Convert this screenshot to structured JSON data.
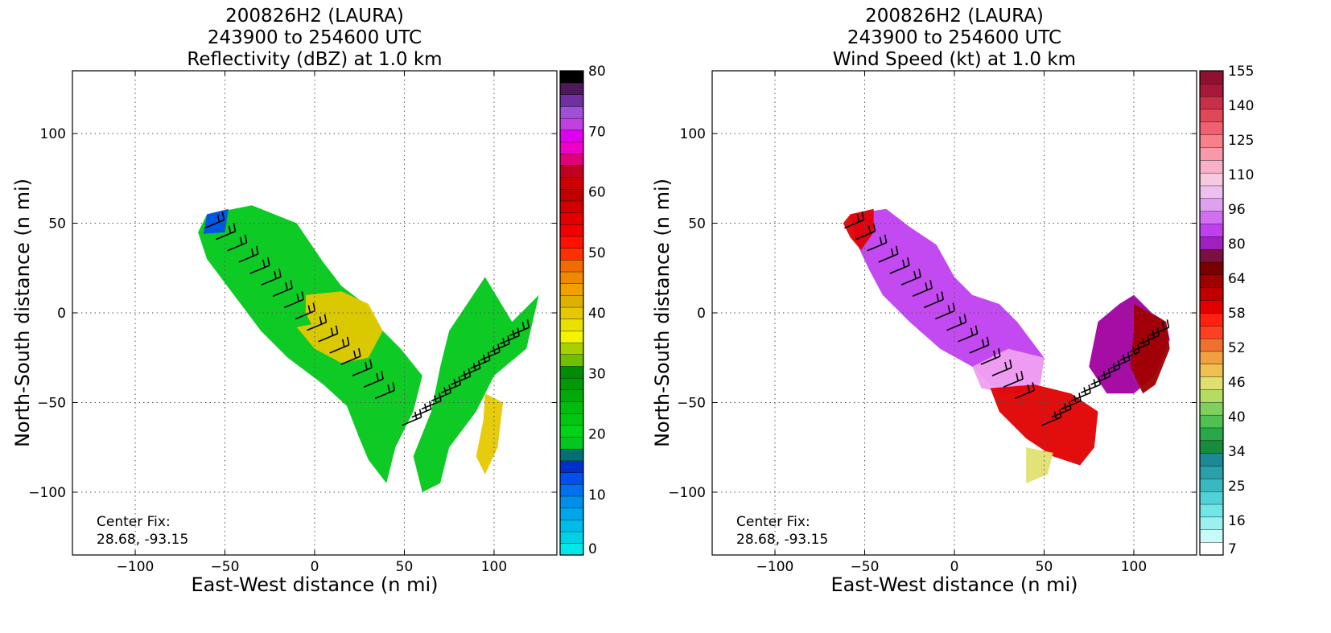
{
  "chart_data": [
    {
      "type": "heatmap",
      "title": [
        "200826H2 (LAURA)",
        "243900 to 254600 UTC",
        "Reflectivity (dBZ) at 1.0 km"
      ],
      "xlabel": "East-West distance (n mi)",
      "ylabel": "North-South distance (n mi)",
      "xlim": [
        -135,
        135
      ],
      "ylim": [
        -135,
        135
      ],
      "xticks": [
        -100,
        -50,
        0,
        50,
        100
      ],
      "yticks": [
        -100,
        -50,
        0,
        50,
        100
      ],
      "grid": true,
      "annotation": [
        "Center Fix:",
        "28.68, -93.15"
      ],
      "colorbar": {
        "tick_labels": [
          "0",
          "10",
          "20",
          "30",
          "40",
          "50",
          "60",
          "70",
          "80"
        ],
        "colors": [
          "#00e8e8",
          "#00d2e6",
          "#00bce8",
          "#00a6ea",
          "#0090ec",
          "#0070ee",
          "#0050ee",
          "#0030cc",
          "#007070",
          "#00c81e",
          "#00d418",
          "#00c812",
          "#00bc0c",
          "#00aa0a",
          "#009a08",
          "#008c06",
          "#70c000",
          "#a6d000",
          "#f4f400",
          "#ece000",
          "#e6c800",
          "#e0b000",
          "#f0a000",
          "#f08800",
          "#f06c00",
          "#ff3000",
          "#ff1000",
          "#f20000",
          "#e20000",
          "#d00000",
          "#c00000",
          "#cc0000",
          "#c00020",
          "#e0007a",
          "#ee00c8",
          "#e000f0",
          "#c040e0",
          "#a050d8",
          "#7030a0",
          "#4c1a5a",
          "#000000"
        ]
      },
      "wind_barbs_shown": true,
      "data_region": [
        {
          "points": [
            [
              -60,
              55
            ],
            [
              -35,
              60
            ],
            [
              -10,
              50
            ],
            [
              5,
              28
            ],
            [
              15,
              15
            ],
            [
              28,
              5
            ],
            [
              38,
              -10
            ],
            [
              48,
              -20
            ],
            [
              60,
              -35
            ],
            [
              55,
              -55
            ],
            [
              45,
              -75
            ],
            [
              40,
              -95
            ],
            [
              30,
              -82
            ],
            [
              25,
              -70
            ],
            [
              18,
              -52
            ],
            [
              5,
              -40
            ],
            [
              -15,
              -25
            ],
            [
              -30,
              -10
            ],
            [
              -45,
              10
            ],
            [
              -60,
              30
            ],
            [
              -65,
              45
            ]
          ],
          "color": "#00c818"
        },
        {
          "points": [
            [
              75,
              -10
            ],
            [
              95,
              20
            ],
            [
              110,
              -5
            ],
            [
              125,
              10
            ],
            [
              118,
              -20
            ],
            [
              100,
              -35
            ],
            [
              90,
              -55
            ],
            [
              75,
              -75
            ],
            [
              70,
              -95
            ],
            [
              60,
              -100
            ],
            [
              55,
              -80
            ],
            [
              65,
              -55
            ],
            [
              70,
              -30
            ]
          ],
          "color": "#00c818"
        },
        {
          "points": [
            [
              95,
              -45
            ],
            [
              105,
              -50
            ],
            [
              102,
              -75
            ],
            [
              95,
              -90
            ],
            [
              90,
              -80
            ],
            [
              94,
              -60
            ]
          ],
          "color": "#e6c800"
        },
        {
          "points": [
            [
              -5,
              10
            ],
            [
              15,
              12
            ],
            [
              30,
              5
            ],
            [
              38,
              -10
            ],
            [
              30,
              -25
            ],
            [
              15,
              -28
            ],
            [
              0,
              -20
            ],
            [
              -10,
              -8
            ],
            [
              5,
              -5
            ],
            [
              20,
              -5
            ],
            [
              25,
              -15
            ],
            [
              12,
              -18
            ],
            [
              0,
              -10
            ],
            [
              -5,
              0
            ]
          ],
          "color": "#e6c800"
        },
        {
          "points": [
            [
              -60,
              55
            ],
            [
              -48,
              58
            ],
            [
              -50,
              45
            ],
            [
              -62,
              44
            ]
          ],
          "color": "#0050ee"
        }
      ]
    },
    {
      "type": "heatmap",
      "title": [
        "200826H2 (LAURA)",
        "243900 to 254600 UTC",
        "Wind Speed (kt) at 1.0 km"
      ],
      "xlabel": "East-West distance (n mi)",
      "ylabel": "North-South distance (n mi)",
      "xlim": [
        -135,
        135
      ],
      "ylim": [
        -135,
        135
      ],
      "xticks": [
        -100,
        -50,
        0,
        50,
        100
      ],
      "yticks": [
        -100,
        -50,
        0,
        50,
        100
      ],
      "grid": true,
      "annotation": [
        "Center Fix:",
        "28.68, -93.15"
      ],
      "colorbar": {
        "tick_labels": [
          "7",
          "16",
          "25",
          "34",
          "40",
          "46",
          "52",
          "58",
          "64",
          "80",
          "96",
          "110",
          "125",
          "140",
          "155"
        ],
        "colors": [
          "#ffffff",
          "#c8fafa",
          "#9cf0f0",
          "#70e6e6",
          "#50d2d6",
          "#3ab8c0",
          "#2aa0aa",
          "#1c8a96",
          "#168c3c",
          "#28a848",
          "#50c050",
          "#80d060",
          "#b4dc60",
          "#e0e070",
          "#f0c050",
          "#f0a040",
          "#f07030",
          "#ff4020",
          "#ff2010",
          "#e00000",
          "#c00000",
          "#a00000",
          "#7a0000",
          "#7a1040",
          "#a020c0",
          "#c040f0",
          "#d070f0",
          "#e0a0f0",
          "#eec0f0",
          "#f8c8e0",
          "#f8b0c8",
          "#f898a8",
          "#f88088",
          "#f06070",
          "#e04858",
          "#c83048",
          "#a81838",
          "#901030"
        ]
      },
      "wind_barbs_shown": true,
      "data_region": [
        {
          "points": [
            [
              -58,
              55
            ],
            [
              -38,
              58
            ],
            [
              -25,
              48
            ],
            [
              -10,
              38
            ],
            [
              0,
              20
            ],
            [
              10,
              10
            ],
            [
              25,
              5
            ],
            [
              35,
              -5
            ],
            [
              50,
              -25
            ],
            [
              48,
              -38
            ],
            [
              35,
              -45
            ],
            [
              20,
              -40
            ],
            [
              10,
              -30
            ],
            [
              -8,
              -20
            ],
            [
              -25,
              -5
            ],
            [
              -40,
              10
            ],
            [
              -48,
              25
            ],
            [
              -55,
              40
            ]
          ],
          "color": "#c040f0"
        },
        {
          "points": [
            [
              -58,
              55
            ],
            [
              -45,
              58
            ],
            [
              -45,
              45
            ],
            [
              -52,
              35
            ],
            [
              -58,
              42
            ],
            [
              -62,
              50
            ]
          ],
          "color": "#e00000"
        },
        {
          "points": [
            [
              10,
              -30
            ],
            [
              30,
              -20
            ],
            [
              50,
              -25
            ],
            [
              48,
              -40
            ],
            [
              30,
              -45
            ],
            [
              15,
              -42
            ]
          ],
          "color": "#f0a0f0"
        },
        {
          "points": [
            [
              20,
              -42
            ],
            [
              45,
              -40
            ],
            [
              65,
              -45
            ],
            [
              80,
              -55
            ],
            [
              78,
              -75
            ],
            [
              70,
              -85
            ],
            [
              55,
              -80
            ],
            [
              40,
              -70
            ],
            [
              25,
              -55
            ]
          ],
          "color": "#e00000"
        },
        {
          "points": [
            [
              75,
              -30
            ],
            [
              80,
              -5
            ],
            [
              92,
              5
            ],
            [
              100,
              10
            ],
            [
              110,
              0
            ],
            [
              118,
              -5
            ],
            [
              120,
              -15
            ],
            [
              112,
              -35
            ],
            [
              100,
              -45
            ],
            [
              85,
              -45
            ]
          ],
          "color": "#a000a0"
        },
        {
          "points": [
            [
              100,
              5
            ],
            [
              118,
              -5
            ],
            [
              120,
              -20
            ],
            [
              112,
              -40
            ],
            [
              105,
              -45
            ],
            [
              98,
              -30
            ],
            [
              100,
              -10
            ]
          ],
          "color": "#a00000"
        },
        {
          "points": [
            [
              40,
              -75
            ],
            [
              55,
              -78
            ],
            [
              52,
              -90
            ],
            [
              40,
              -95
            ]
          ],
          "color": "#e0e070"
        }
      ]
    }
  ]
}
